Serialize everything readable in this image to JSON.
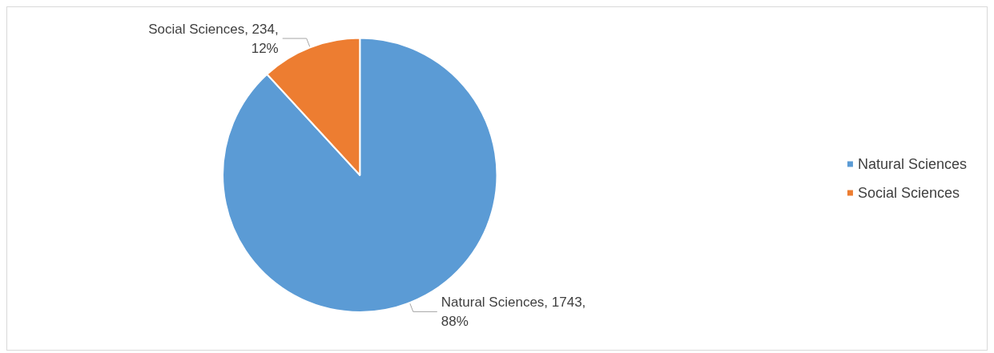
{
  "chart_data": {
    "type": "pie",
    "categories": [
      "Natural Sciences",
      "Social Sciences"
    ],
    "values": [
      1743,
      234
    ],
    "colors": [
      "#5b9bd5",
      "#ed7d31"
    ],
    "value_labels": [
      "Natural Sciences, 1743,\n88%",
      "Social Sciences, 234,\n12%"
    ],
    "legend": "right"
  }
}
